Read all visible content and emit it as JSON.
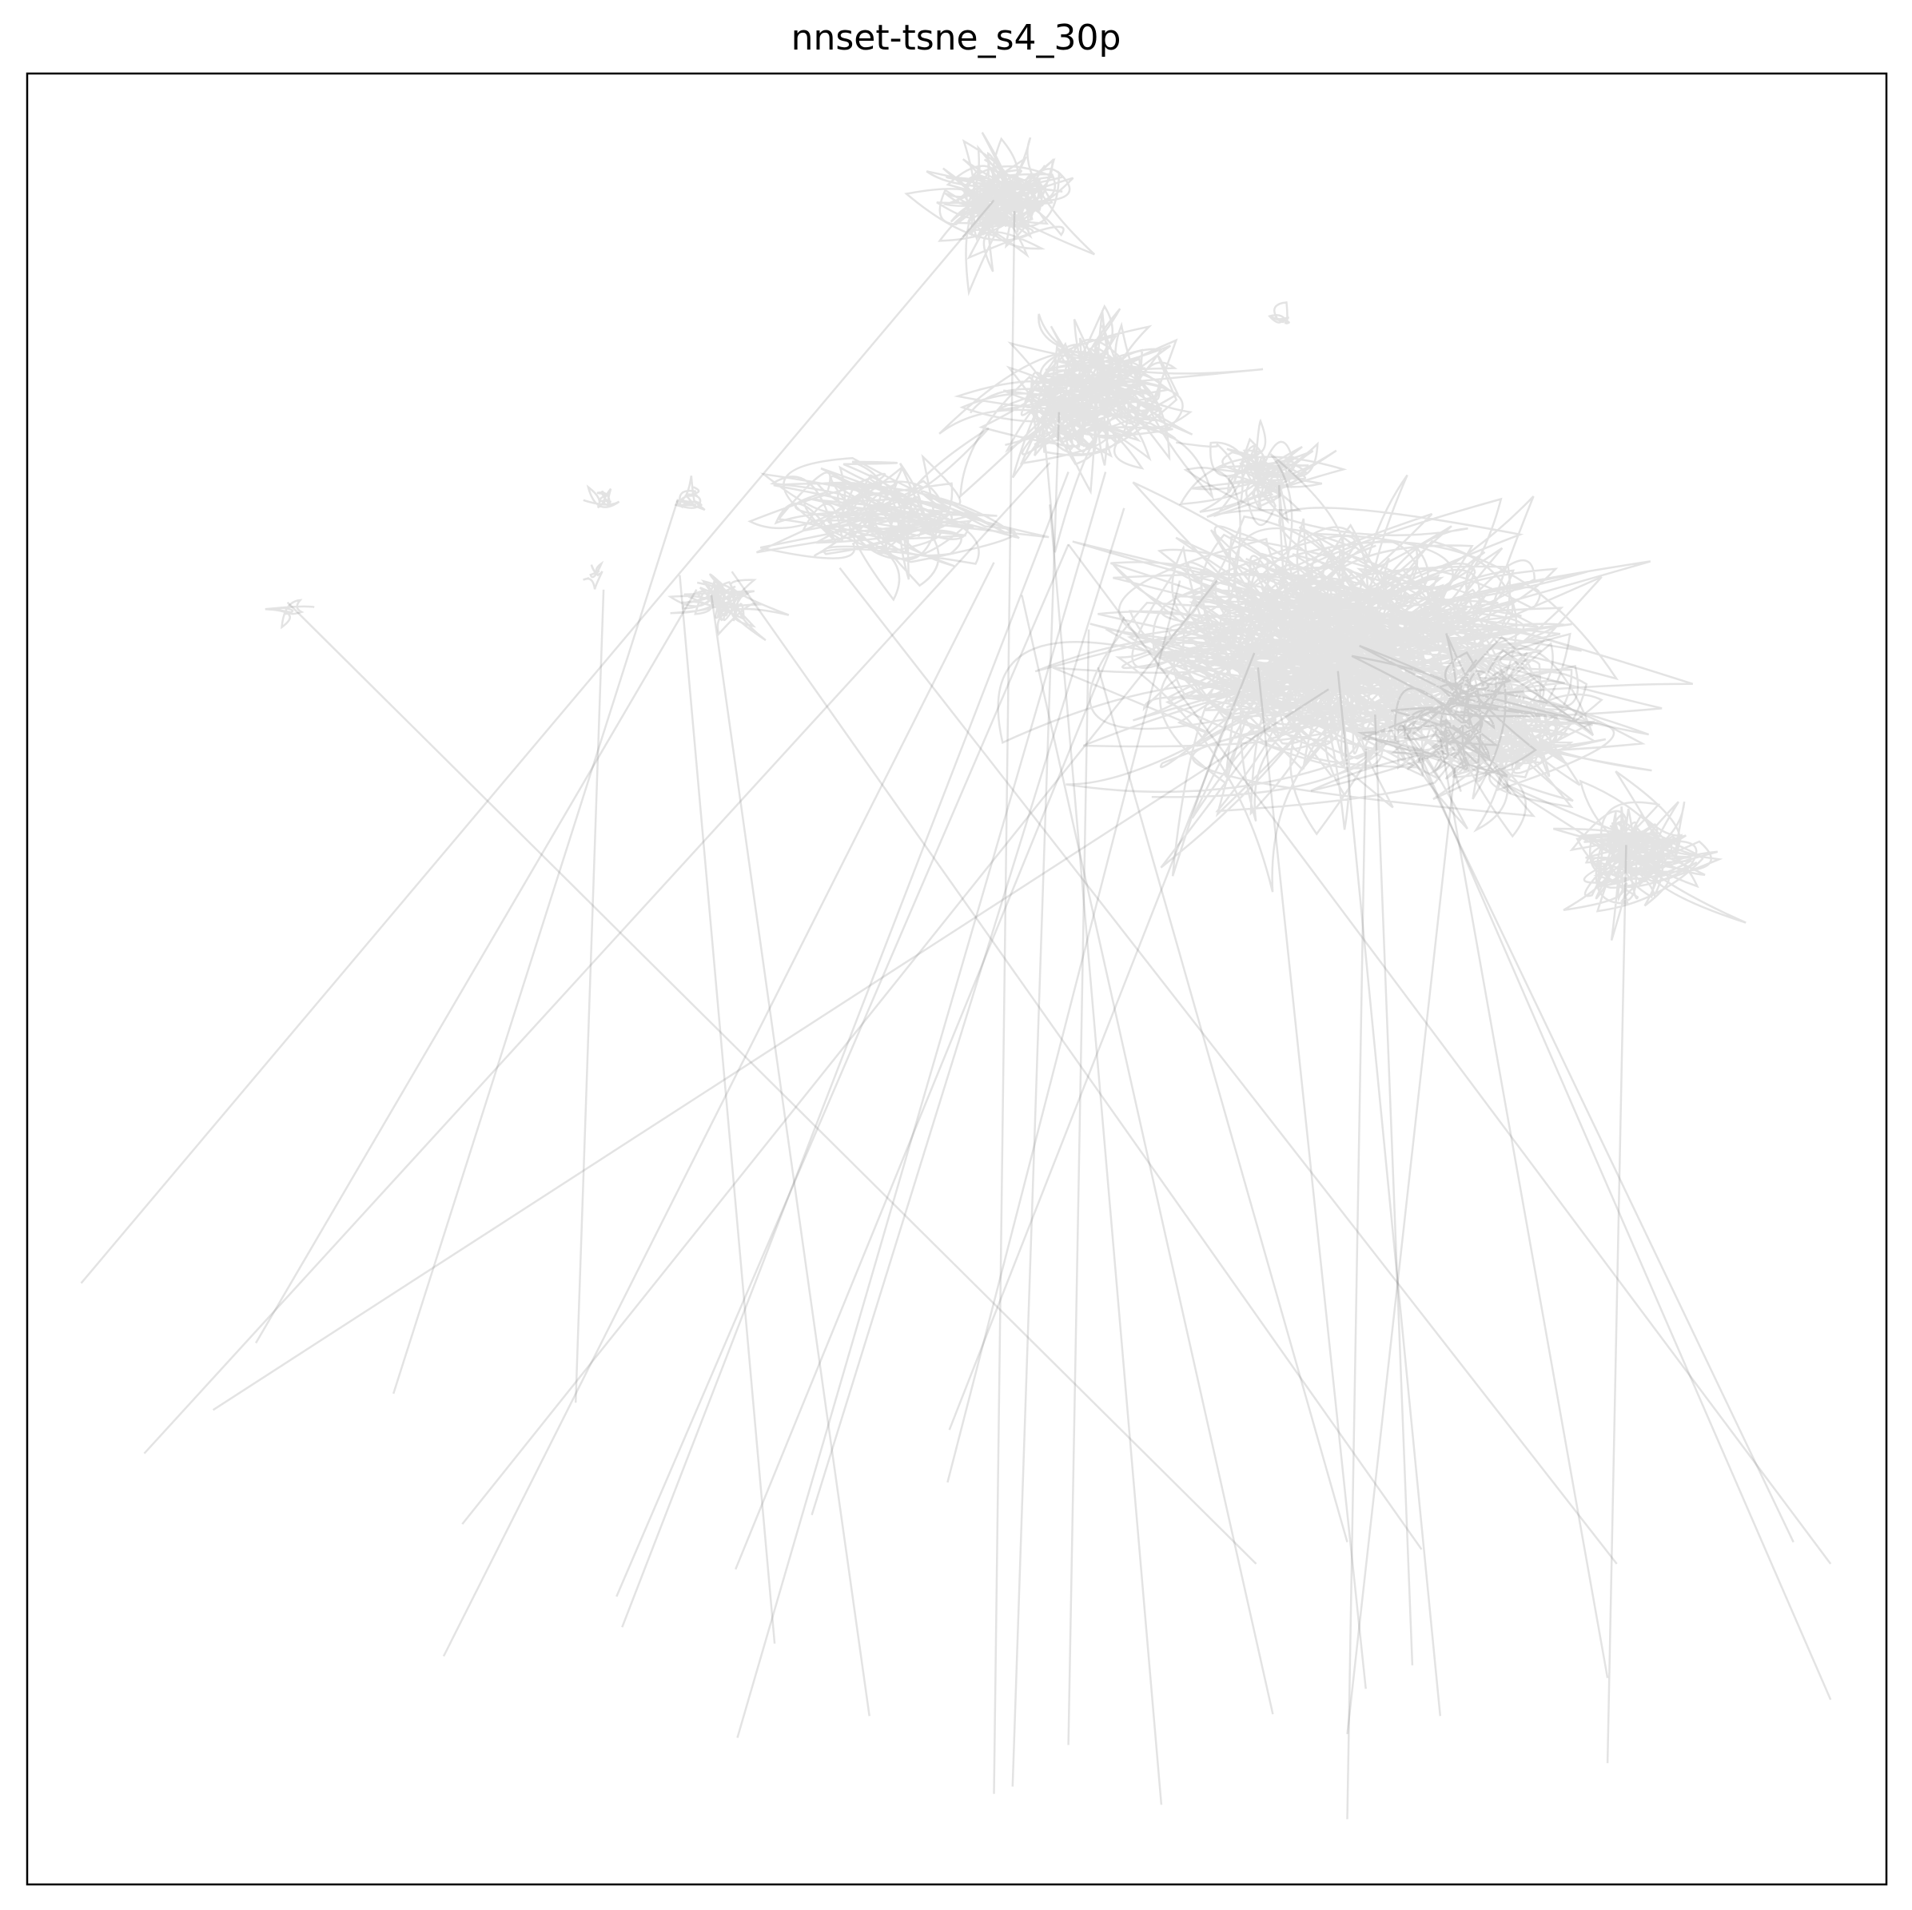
{
  "chart_data": {
    "type": "line",
    "title": "nnset-tsne_s4_30p",
    "xlabel": "",
    "ylabel": "",
    "xlim": [
      0,
      1
    ],
    "ylim": [
      0,
      1
    ],
    "grid": false,
    "ticks": false,
    "legend": "none",
    "line_color": "#808080",
    "line_opacity": 0.22,
    "clusters": [
      {
        "center": [
          0.525,
          0.93
        ],
        "spread": [
          0.03,
          0.025
        ],
        "loops": 90
      },
      {
        "center": [
          0.57,
          0.82
        ],
        "spread": [
          0.05,
          0.035
        ],
        "loops": 110
      },
      {
        "center": [
          0.665,
          0.78
        ],
        "spread": [
          0.03,
          0.025
        ],
        "loops": 40
      },
      {
        "center": [
          0.7,
          0.68
        ],
        "spread": [
          0.11,
          0.07
        ],
        "loops": 260
      },
      {
        "center": [
          0.79,
          0.64
        ],
        "spread": [
          0.05,
          0.04
        ],
        "loops": 90
      },
      {
        "center": [
          0.865,
          0.57
        ],
        "spread": [
          0.035,
          0.03
        ],
        "loops": 70
      },
      {
        "center": [
          0.46,
          0.755
        ],
        "spread": [
          0.06,
          0.03
        ],
        "loops": 60
      },
      {
        "center": [
          0.37,
          0.71
        ],
        "spread": [
          0.02,
          0.015
        ],
        "loops": 30
      },
      {
        "center": [
          0.31,
          0.765
        ],
        "spread": [
          0.008,
          0.008
        ],
        "loops": 8
      },
      {
        "center": [
          0.355,
          0.765
        ],
        "spread": [
          0.01,
          0.006
        ],
        "loops": 10
      },
      {
        "center": [
          0.305,
          0.72
        ],
        "spread": [
          0.006,
          0.008
        ],
        "loops": 6
      },
      {
        "center": [
          0.675,
          0.865
        ],
        "spread": [
          0.006,
          0.006
        ],
        "loops": 5
      },
      {
        "center": [
          0.14,
          0.705
        ],
        "spread": [
          0.01,
          0.008
        ],
        "loops": 5
      }
    ],
    "segments": [
      [
        [
          0.029,
          0.332
        ],
        [
          0.52,
          0.93
        ]
      ],
      [
        [
          0.123,
          0.299
        ],
        [
          0.36,
          0.715
        ]
      ],
      [
        [
          0.063,
          0.238
        ],
        [
          0.55,
          0.785
        ]
      ],
      [
        [
          0.1,
          0.262
        ],
        [
          0.7,
          0.66
        ]
      ],
      [
        [
          0.14,
          0.708
        ],
        [
          0.661,
          0.177
        ]
      ],
      [
        [
          0.197,
          0.271
        ],
        [
          0.35,
          0.765
        ]
      ],
      [
        [
          0.234,
          0.199
        ],
        [
          0.64,
          0.72
        ]
      ],
      [
        [
          0.295,
          0.266
        ],
        [
          0.31,
          0.715
        ]
      ],
      [
        [
          0.351,
          0.723
        ],
        [
          0.402,
          0.133
        ]
      ],
      [
        [
          0.368,
          0.712
        ],
        [
          0.453,
          0.093
        ]
      ],
      [
        [
          0.224,
          0.126
        ],
        [
          0.52,
          0.73
        ]
      ],
      [
        [
          0.317,
          0.159
        ],
        [
          0.56,
          0.74
        ]
      ],
      [
        [
          0.422,
          0.204
        ],
        [
          0.59,
          0.76
        ]
      ],
      [
        [
          0.379,
          0.725
        ],
        [
          0.75,
          0.185
        ]
      ],
      [
        [
          0.437,
          0.727
        ],
        [
          0.855,
          0.177
        ]
      ],
      [
        [
          0.495,
          0.222
        ],
        [
          0.62,
          0.72
        ]
      ],
      [
        [
          0.531,
          0.924
        ],
        [
          0.52,
          0.05
        ]
      ],
      [
        [
          0.496,
          0.251
        ],
        [
          0.66,
          0.68
        ]
      ],
      [
        [
          0.55,
          0.762
        ],
        [
          0.61,
          0.044
        ]
      ],
      [
        [
          0.381,
          0.174
        ],
        [
          0.59,
          0.7
        ]
      ],
      [
        [
          0.382,
          0.081
        ],
        [
          0.58,
          0.78
        ]
      ],
      [
        [
          0.32,
          0.142
        ],
        [
          0.56,
          0.78
        ]
      ],
      [
        [
          0.555,
          0.813
        ],
        [
          0.53,
          0.054
        ]
      ],
      [
        [
          0.535,
          0.712
        ],
        [
          0.67,
          0.094
        ]
      ],
      [
        [
          0.571,
          0.693
        ],
        [
          0.56,
          0.077
        ]
      ],
      [
        [
          0.576,
          0.672
        ],
        [
          0.71,
          0.189
        ]
      ],
      [
        [
          0.662,
          0.672
        ],
        [
          0.72,
          0.108
        ]
      ],
      [
        [
          0.705,
          0.67
        ],
        [
          0.76,
          0.093
        ]
      ],
      [
        [
          0.72,
          0.627
        ],
        [
          0.71,
          0.036
        ]
      ],
      [
        [
          0.725,
          0.646
        ],
        [
          0.745,
          0.121
        ]
      ],
      [
        [
          0.768,
          0.617
        ],
        [
          0.71,
          0.083
        ]
      ],
      [
        [
          0.76,
          0.633
        ],
        [
          0.85,
          0.114
        ]
      ],
      [
        [
          0.75,
          0.622
        ],
        [
          0.97,
          0.102
        ]
      ],
      [
        [
          0.74,
          0.64
        ],
        [
          0.95,
          0.189
        ]
      ],
      [
        [
          0.86,
          0.574
        ],
        [
          0.85,
          0.067
        ]
      ],
      [
        [
          0.56,
          0.74
        ],
        [
          0.97,
          0.177
        ]
      ]
    ]
  }
}
